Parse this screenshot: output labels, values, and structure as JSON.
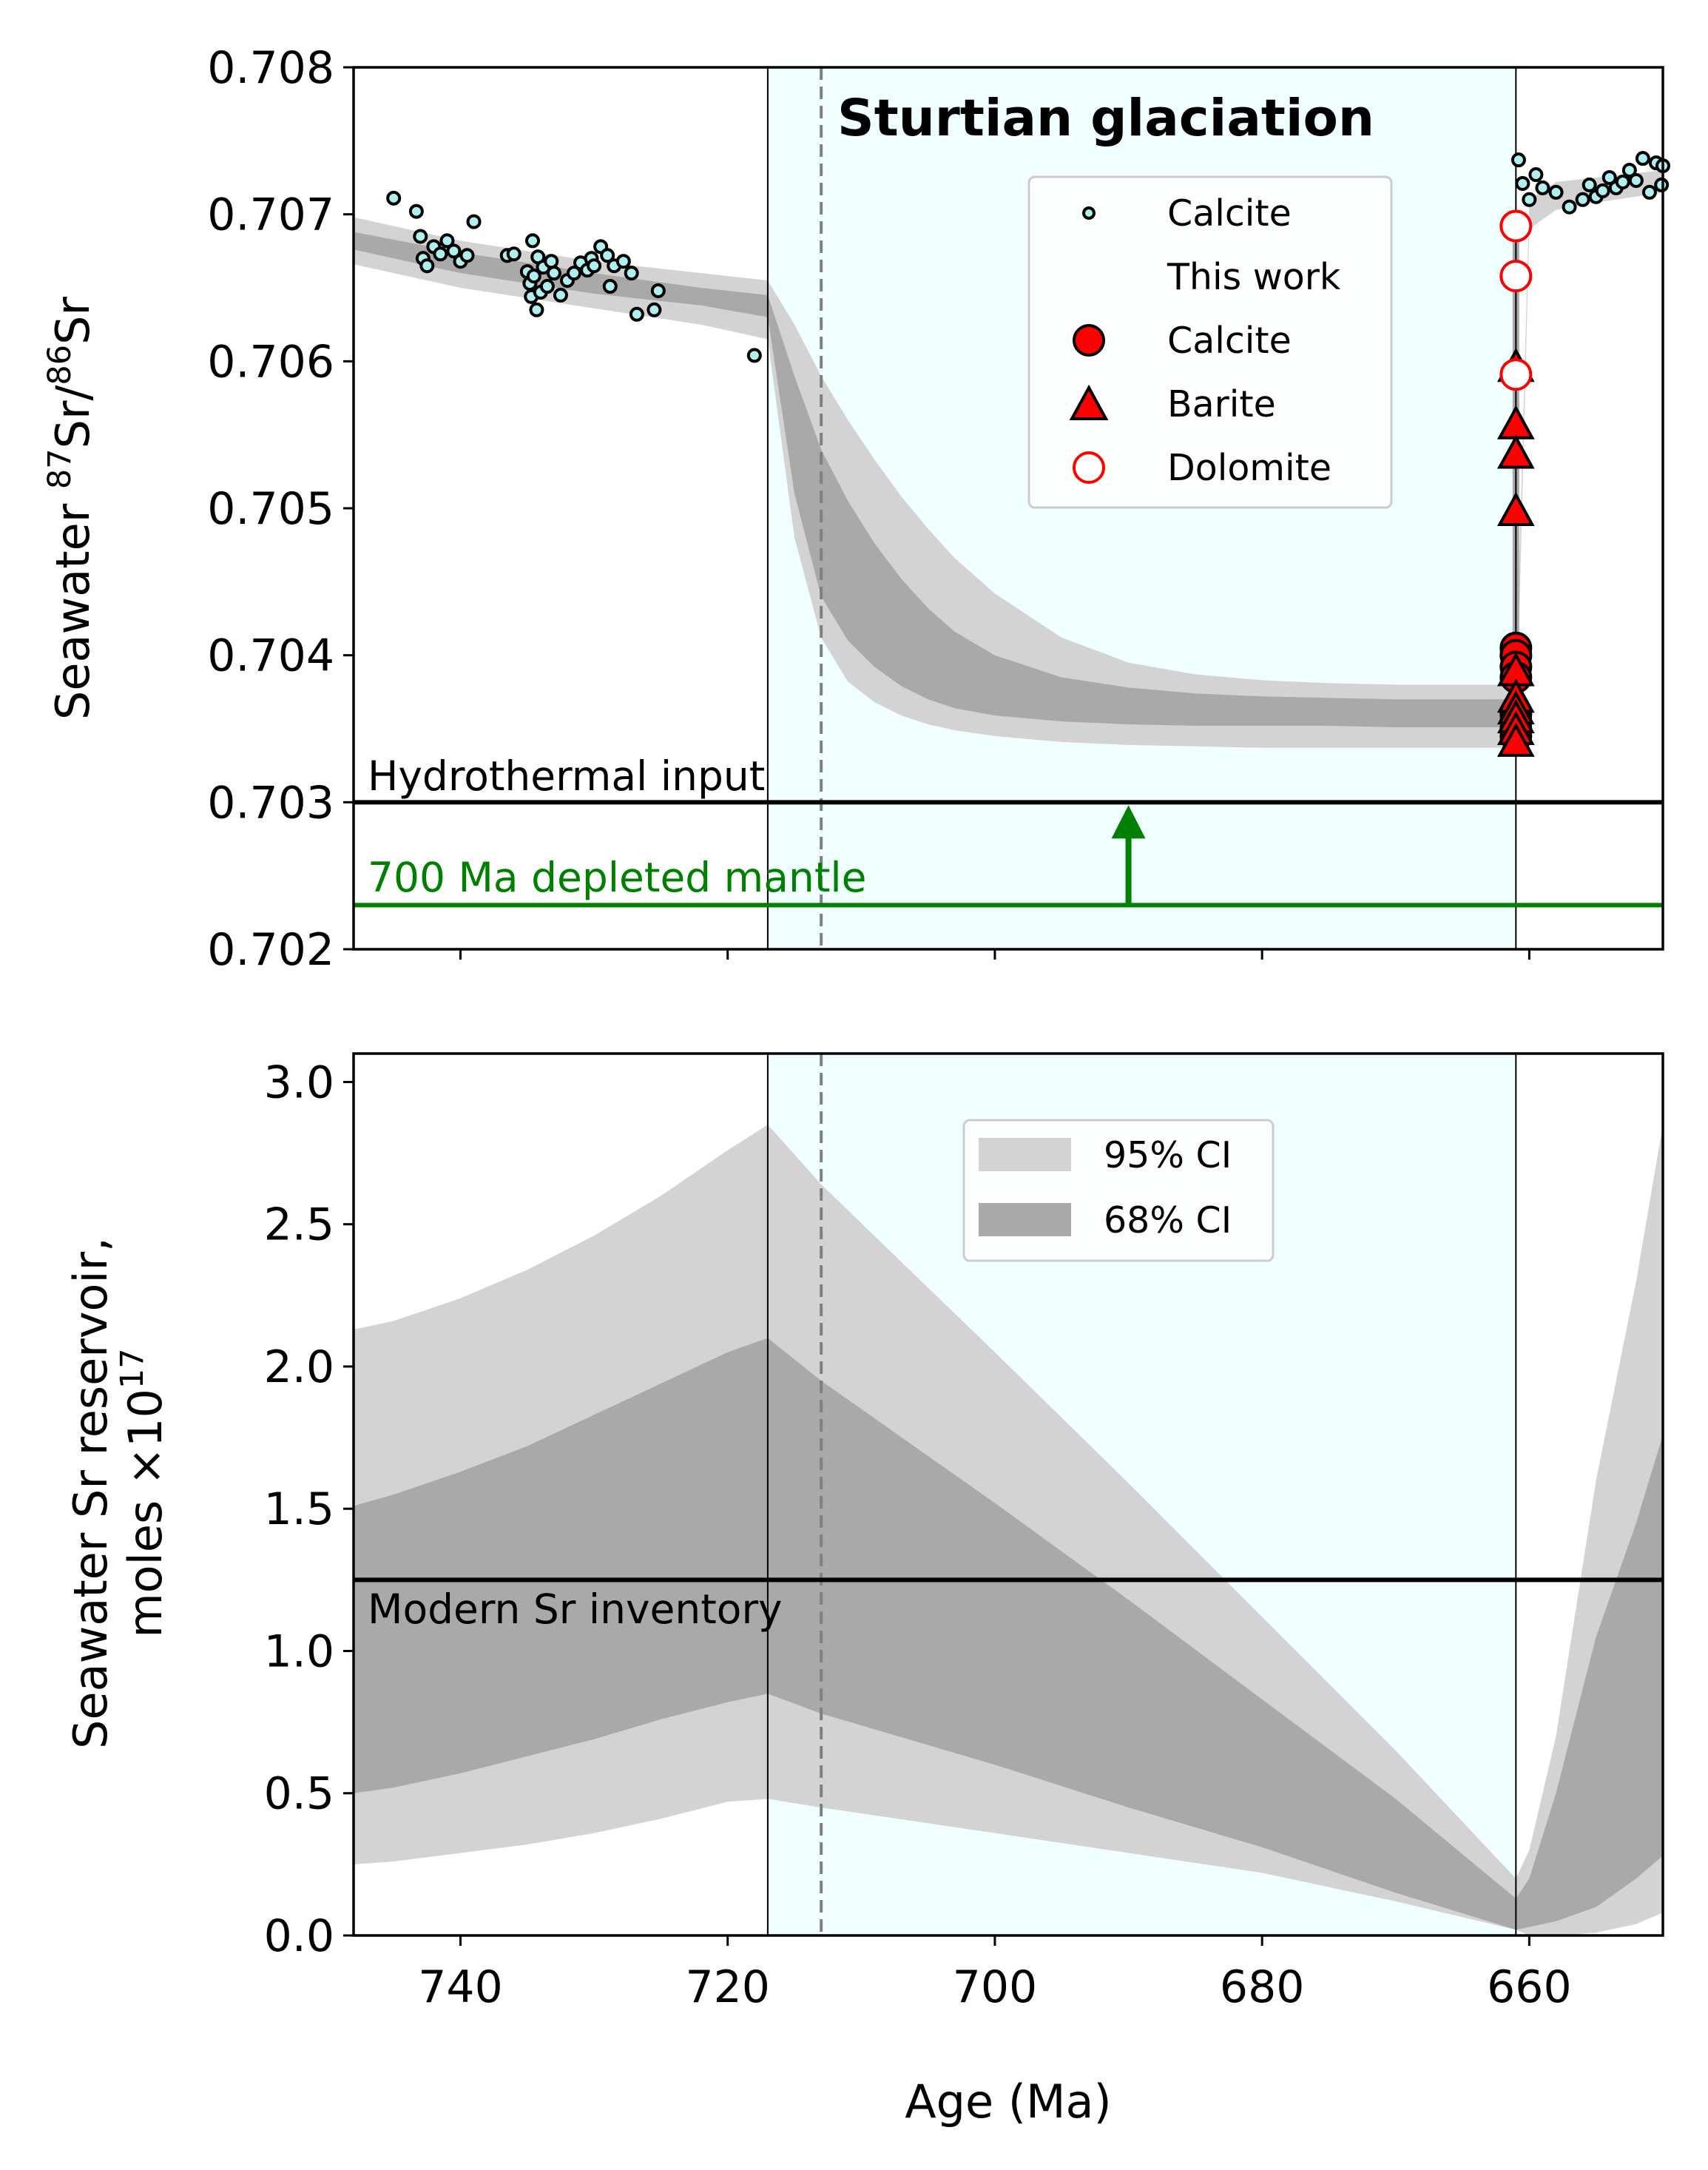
{
  "colors": {
    "glaciation_shade": "#f0ffff",
    "ci95": "#d3d3d3",
    "ci68": "#a9a9a9",
    "hydrothermal_line": "#000000",
    "mantle_line": "#008000",
    "guide_dashed": "#808080",
    "calcite_compilation_fill": "#aef0f0",
    "this_work_fill": "#ff0000",
    "dolomite_edge": "#ff0000"
  },
  "chart_data": [
    {
      "type": "scatter",
      "panel": "top",
      "title": "",
      "annotation": "Sturtian glaciation",
      "ylabel": "Seawater 87Sr/86Sr",
      "ylabel_parts": {
        "pre": "Seawater ",
        "sup1": "87",
        "mid": "Sr/",
        "sup2": "86",
        "post": "Sr"
      },
      "xlim": [
        748,
        650
      ],
      "ylim": [
        0.702,
        0.708
      ],
      "x_ticks": [
        740,
        720,
        700,
        680,
        660
      ],
      "y_ticks": [
        "0.702",
        "0.703",
        "0.704",
        "0.705",
        "0.706",
        "0.707",
        "0.708"
      ],
      "glaciation_interval": [
        717,
        661
      ],
      "dashed_line_x": 713,
      "reference_lines": [
        {
          "label": "Hydrothermal input",
          "y": 0.703
        },
        {
          "label": "700 Ma depleted mantle",
          "y": 0.7023
        }
      ],
      "arrow": {
        "x": 690,
        "from_y": 0.7023,
        "to_y": 0.703
      },
      "legend": {
        "placement": "upper-right",
        "entries": [
          "Calcite",
          "This work",
          "Calcite",
          "Barite",
          "Dolomite"
        ]
      },
      "band_x": [
        748,
        740,
        730,
        722,
        717,
        715,
        713,
        711,
        709,
        707,
        705,
        703,
        700,
        695,
        690,
        685,
        680,
        675,
        670,
        665,
        661
      ],
      "ci95": {
        "upper": [
          0.70698,
          0.70682,
          0.70668,
          0.7066,
          0.70655,
          0.70625,
          0.7059,
          0.7056,
          0.70533,
          0.70508,
          0.70486,
          0.70466,
          0.70442,
          0.70412,
          0.70395,
          0.70387,
          0.70383,
          0.70381,
          0.7038,
          0.7038,
          0.7038
        ],
        "lower": [
          0.70666,
          0.7065,
          0.70636,
          0.70625,
          0.70615,
          0.7048,
          0.70412,
          0.70382,
          0.70368,
          0.70359,
          0.70353,
          0.70349,
          0.70345,
          0.70341,
          0.70339,
          0.70338,
          0.70337,
          0.70337,
          0.70337,
          0.70337,
          0.70337
        ]
      },
      "ci68": {
        "upper": [
          0.70688,
          0.70674,
          0.7066,
          0.7065,
          0.70645,
          0.7059,
          0.7054,
          0.70505,
          0.70476,
          0.70452,
          0.70432,
          0.70416,
          0.704,
          0.70385,
          0.70378,
          0.70374,
          0.70372,
          0.70371,
          0.7037,
          0.7037,
          0.7037
        ],
        "lower": [
          0.70676,
          0.7066,
          0.70646,
          0.70638,
          0.7063,
          0.7051,
          0.7044,
          0.7041,
          0.70392,
          0.70379,
          0.7037,
          0.70364,
          0.70359,
          0.70355,
          0.70353,
          0.70352,
          0.70352,
          0.70352,
          0.70351,
          0.70351,
          0.70351
        ]
      },
      "post_band": {
        "x": [
          661,
          660,
          658,
          655,
          652,
          650
        ],
        "upper": [
          0.7038,
          0.7071,
          0.70722,
          0.70725,
          0.70728,
          0.7073
        ],
        "lower": [
          0.70337,
          0.7069,
          0.70703,
          0.70708,
          0.70712,
          0.70715
        ]
      },
      "series": [
        {
          "name": "Calcite",
          "marker": "small-circle",
          "points": [
            [
              745,
              0.70711
            ],
            [
              743.3,
              0.70702
            ],
            [
              743,
              0.70685
            ],
            [
              742.8,
              0.7067
            ],
            [
              742.5,
              0.70665
            ],
            [
              742,
              0.70678
            ],
            [
              741.5,
              0.70673
            ],
            [
              741,
              0.70682
            ],
            [
              740.5,
              0.70675
            ],
            [
              740,
              0.70668
            ],
            [
              739.5,
              0.70672
            ],
            [
              739,
              0.70695
            ],
            [
              736.5,
              0.70672
            ],
            [
              736,
              0.70673
            ],
            [
              735,
              0.70661
            ],
            [
              734.8,
              0.70653
            ],
            [
              734.7,
              0.70644
            ],
            [
              734.6,
              0.70682
            ],
            [
              734.5,
              0.70658
            ],
            [
              734.3,
              0.70635
            ],
            [
              734.2,
              0.70671
            ],
            [
              734,
              0.70647
            ],
            [
              733.8,
              0.70664
            ],
            [
              733.5,
              0.70651
            ],
            [
              733.2,
              0.70668
            ],
            [
              733,
              0.7066
            ],
            [
              732.5,
              0.70645
            ],
            [
              732,
              0.70655
            ],
            [
              731.5,
              0.7066
            ],
            [
              731,
              0.70667
            ],
            [
              730.5,
              0.70662
            ],
            [
              730.2,
              0.7067
            ],
            [
              730,
              0.70665
            ],
            [
              729.5,
              0.70678
            ],
            [
              729,
              0.70672
            ],
            [
              728.8,
              0.70651
            ],
            [
              728.5,
              0.70665
            ],
            [
              727.8,
              0.70668
            ],
            [
              727.2,
              0.7066
            ],
            [
              726.8,
              0.70632
            ],
            [
              725.5,
              0.70635
            ],
            [
              725.2,
              0.70648
            ],
            [
              718,
              0.70604
            ],
            [
              660.8,
              0.70737
            ],
            [
              660.5,
              0.70721
            ],
            [
              660,
              0.7071
            ],
            [
              659.5,
              0.70727
            ],
            [
              659,
              0.70718
            ],
            [
              658,
              0.70715
            ],
            [
              657,
              0.70705
            ],
            [
              656,
              0.7071
            ],
            [
              655.5,
              0.7072
            ],
            [
              655,
              0.70712
            ],
            [
              654.5,
              0.70716
            ],
            [
              654,
              0.70725
            ],
            [
              653.5,
              0.70718
            ],
            [
              653,
              0.70722
            ],
            [
              652.5,
              0.7073
            ],
            [
              652,
              0.70723
            ],
            [
              651.5,
              0.70738
            ],
            [
              651,
              0.70715
            ],
            [
              650.5,
              0.70735
            ],
            [
              650.1,
              0.7072
            ],
            [
              650,
              0.70733
            ]
          ]
        },
        {
          "name": "Calcite",
          "marker": "circle-red",
          "points": [
            [
              661,
              0.70405
            ],
            [
              661,
              0.704
            ],
            [
              661,
              0.70392
            ],
            [
              661,
              0.70385
            ],
            [
              661,
              0.7036
            ],
            [
              661,
              0.70355
            ],
            [
              661,
              0.7035
            ],
            [
              661,
              0.70345
            ]
          ]
        },
        {
          "name": "Barite",
          "marker": "triangle-red",
          "points": [
            [
              661,
              0.70595
            ],
            [
              661,
              0.70556
            ],
            [
              661,
              0.70536
            ],
            [
              661,
              0.70497
            ],
            [
              661,
              0.70388
            ],
            [
              661,
              0.7037
            ],
            [
              661,
              0.70362
            ],
            [
              661,
              0.70356
            ],
            [
              661,
              0.70348
            ],
            [
              661,
              0.7034
            ]
          ]
        },
        {
          "name": "Dolomite",
          "marker": "open-circle-red",
          "points": [
            [
              661,
              0.70692
            ],
            [
              661,
              0.70658
            ],
            [
              661,
              0.70591
            ]
          ]
        }
      ]
    },
    {
      "type": "area",
      "panel": "bottom",
      "title": "",
      "ylabel_line1": "Seawater Sr reservoir,",
      "ylabel_line2_pre": "moles ×10",
      "ylabel_line2_sup": "17",
      "xlabel": "Age (Ma)",
      "xlim": [
        748,
        650
      ],
      "ylim": [
        0.0,
        3.1
      ],
      "x_ticks": [
        "740",
        "720",
        "700",
        "680",
        "660"
      ],
      "y_ticks": [
        "0.0",
        "0.5",
        "1.0",
        "1.5",
        "2.0",
        "2.5",
        "3.0"
      ],
      "glaciation_interval": [
        717,
        661
      ],
      "dashed_line_x": 713,
      "reference_lines": [
        {
          "label": "Modern Sr inventory",
          "y": 1.25
        }
      ],
      "legend": {
        "placement": "upper-center",
        "entries": [
          "95% CI",
          "68% CI"
        ]
      },
      "ci95": {
        "x": [
          748,
          745,
          740,
          735,
          730,
          725,
          720,
          717,
          713,
          700,
          690,
          680,
          670,
          661,
          660,
          658,
          655,
          652,
          650
        ],
        "upper": [
          2.13,
          2.16,
          2.24,
          2.34,
          2.46,
          2.6,
          2.76,
          2.85,
          2.64,
          2.05,
          1.59,
          1.12,
          0.65,
          0.2,
          0.3,
          0.7,
          1.6,
          2.3,
          2.85
        ],
        "lower": [
          0.25,
          0.26,
          0.29,
          0.32,
          0.36,
          0.41,
          0.47,
          0.48,
          0.45,
          0.36,
          0.29,
          0.22,
          0.12,
          0.02,
          0.0,
          0.0,
          0.01,
          0.04,
          0.08
        ]
      },
      "ci68": {
        "x": [
          748,
          745,
          740,
          735,
          730,
          725,
          720,
          717,
          713,
          700,
          690,
          680,
          670,
          661,
          660,
          658,
          655,
          652,
          650
        ],
        "upper": [
          1.51,
          1.55,
          1.63,
          1.72,
          1.83,
          1.94,
          2.05,
          2.1,
          1.95,
          1.52,
          1.18,
          0.83,
          0.48,
          0.13,
          0.2,
          0.5,
          1.05,
          1.45,
          1.76
        ],
        "lower": [
          0.5,
          0.52,
          0.57,
          0.63,
          0.69,
          0.76,
          0.82,
          0.85,
          0.78,
          0.6,
          0.45,
          0.31,
          0.15,
          0.02,
          0.03,
          0.05,
          0.1,
          0.2,
          0.28
        ]
      }
    }
  ]
}
